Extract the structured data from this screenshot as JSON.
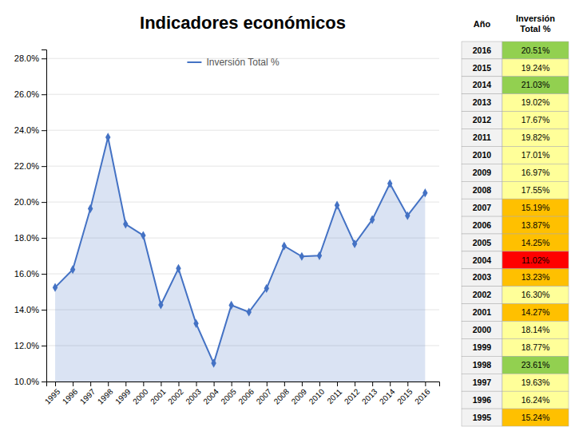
{
  "chart_data": [
    {
      "type": "area",
      "title": "Indicadores económicos",
      "x": [
        1995,
        1996,
        1997,
        1998,
        1999,
        2000,
        2001,
        2002,
        2003,
        2004,
        2005,
        2006,
        2007,
        2008,
        2009,
        2010,
        2011,
        2012,
        2013,
        2014,
        2015,
        2016
      ],
      "series": [
        {
          "name": "Inversión Total %",
          "color": "#4472C4",
          "marker": "diamond",
          "values": [
            15.24,
            16.24,
            19.63,
            23.61,
            18.77,
            18.14,
            14.27,
            16.3,
            13.23,
            11.02,
            14.25,
            13.87,
            15.19,
            17.55,
            16.97,
            17.01,
            19.82,
            17.67,
            19.02,
            21.03,
            19.24,
            20.51
          ]
        }
      ],
      "xlim": [
        1994.5,
        2016.8
      ],
      "xticks": [
        1995,
        1996,
        1997,
        1998,
        1999,
        2000,
        2001,
        2002,
        2003,
        2004,
        2005,
        2006,
        2007,
        2008,
        2009,
        2010,
        2011,
        2012,
        2013,
        2014,
        2015,
        2016
      ],
      "ylim": [
        10.0,
        28.5
      ],
      "yticks": [
        {
          "value": 10.0,
          "label": "10.0%"
        },
        {
          "value": 12.0,
          "label": "12.0%"
        },
        {
          "value": 14.0,
          "label": "14.0%"
        },
        {
          "value": 16.0,
          "label": "16.0%"
        },
        {
          "value": 18.0,
          "label": "18.0%"
        },
        {
          "value": 20.0,
          "label": "20.0%"
        },
        {
          "value": 22.0,
          "label": "22.0%"
        },
        {
          "value": 24.0,
          "label": "24.0%"
        },
        {
          "value": 26.0,
          "label": "26.0%"
        },
        {
          "value": 28.0,
          "label": "28.0%"
        }
      ],
      "grid": true,
      "legend": "upper center"
    },
    {
      "type": "table",
      "columns": [
        "Año",
        "Inversión\nTotal %"
      ],
      "categories": [
        2016,
        2015,
        2014,
        2013,
        2012,
        2011,
        2010,
        2009,
        2008,
        2007,
        2006,
        2005,
        2004,
        2003,
        2002,
        2001,
        2000,
        1999,
        1998,
        1997,
        1996,
        1995
      ],
      "values": [
        20.51,
        19.24,
        21.03,
        19.02,
        17.67,
        19.82,
        17.01,
        16.97,
        17.55,
        15.19,
        13.87,
        14.25,
        11.02,
        13.23,
        16.3,
        14.27,
        18.14,
        18.77,
        23.61,
        19.63,
        16.24,
        15.24
      ],
      "value_labels": [
        "20.51%",
        "19.24%",
        "21.03%",
        "19.02%",
        "17.67%",
        "19.82%",
        "17.01%",
        "16.97%",
        "17.55%",
        "15.19%",
        "13.87%",
        "14.25%",
        "11.02%",
        "13.23%",
        "16.30%",
        "14.27%",
        "18.14%",
        "18.77%",
        "23.61%",
        "19.63%",
        "16.24%",
        "15.24%"
      ],
      "colors": [
        "#92d050",
        "#ffff99",
        "#92d050",
        "#ffff99",
        "#ffff99",
        "#ffff99",
        "#ffff99",
        "#ffff99",
        "#ffff99",
        "#ffc000",
        "#ffc000",
        "#ffc000",
        "#ff0000",
        "#ffc000",
        "#ffff99",
        "#ffc000",
        "#ffff99",
        "#ffff99",
        "#92d050",
        "#ffff99",
        "#ffff99",
        "#ffc000"
      ]
    }
  ]
}
